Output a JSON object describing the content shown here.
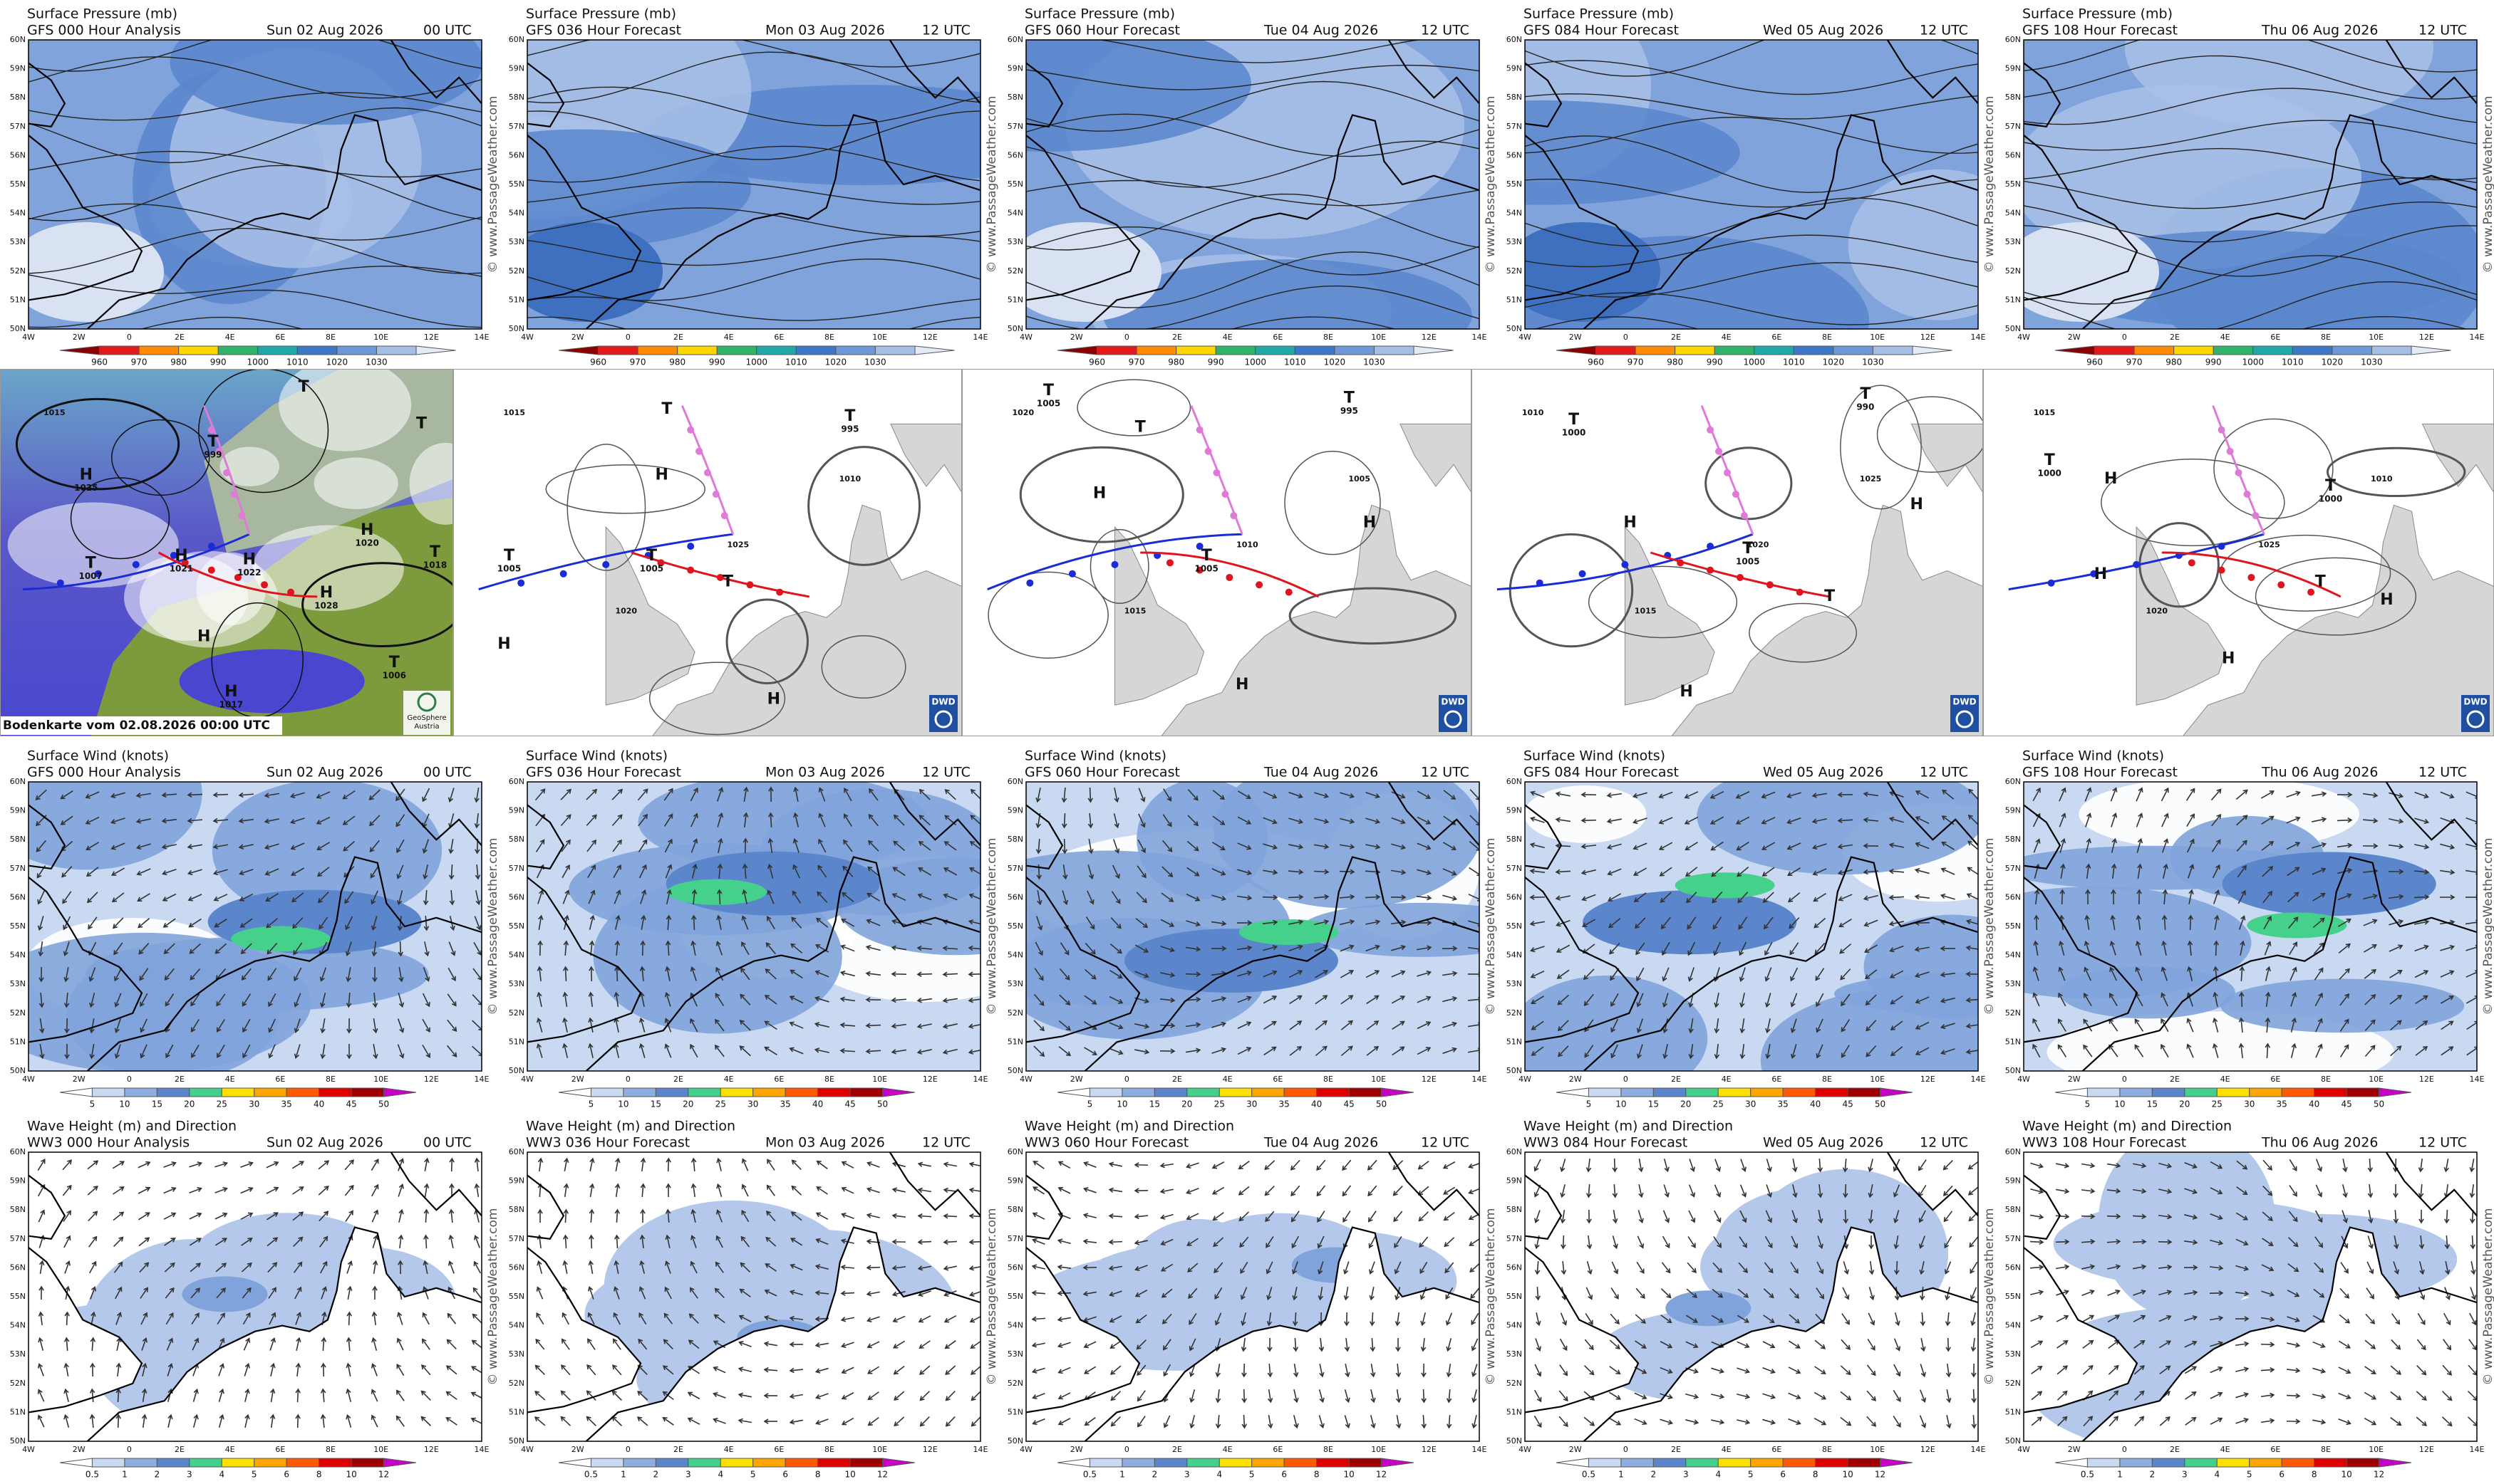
{
  "rows": [
    {
      "title": "Surface Pressure (mb)",
      "scale": [
        960,
        970,
        980,
        990,
        1000,
        1010,
        1020,
        1030
      ],
      "panels": [
        {
          "model": "GFS 000 Hour Analysis",
          "date": "Sun 02 Aug 2026",
          "time": "00 UTC"
        },
        {
          "model": "GFS 036 Hour Forecast",
          "date": "Mon 03 Aug 2026",
          "time": "12 UTC"
        },
        {
          "model": "GFS 060 Hour Forecast",
          "date": "Tue 04 Aug 2026",
          "time": "12 UTC"
        },
        {
          "model": "GFS 084 Hour Forecast",
          "date": "Wed 05 Aug 2026",
          "time": "12 UTC"
        },
        {
          "model": "GFS 108 Hour Forecast",
          "date": "Thu 06 Aug 2026",
          "time": "12 UTC"
        }
      ]
    },
    {
      "title": "Surface Wind (knots)",
      "scale": [
        5,
        10,
        15,
        20,
        25,
        30,
        35,
        40,
        45,
        50
      ],
      "panels": [
        {
          "model": "GFS 000 Hour Analysis",
          "date": "Sun 02 Aug 2026",
          "time": "00 UTC"
        },
        {
          "model": "GFS 036 Hour Forecast",
          "date": "Mon 03 Aug 2026",
          "time": "12 UTC"
        },
        {
          "model": "GFS 060 Hour Forecast",
          "date": "Tue 04 Aug 2026",
          "time": "12 UTC"
        },
        {
          "model": "GFS 084 Hour Forecast",
          "date": "Wed 05 Aug 2026",
          "time": "12 UTC"
        },
        {
          "model": "GFS 108 Hour Forecast",
          "date": "Thu 06 Aug 2026",
          "time": "12 UTC"
        }
      ]
    },
    {
      "title": "Wave Height (m) and Direction",
      "scale": [
        0.5,
        1,
        2,
        3,
        4,
        5,
        6,
        8,
        10,
        12
      ],
      "panels": [
        {
          "model": "WW3 000 Hour Analysis",
          "date": "Sun 02 Aug 2026",
          "time": "00 UTC"
        },
        {
          "model": "WW3 036 Hour Forecast",
          "date": "Mon 03 Aug 2026",
          "time": "12 UTC"
        },
        {
          "model": "WW3 060 Hour Forecast",
          "date": "Tue 04 Aug 2026",
          "time": "12 UTC"
        },
        {
          "model": "WW3 084 Hour Forecast",
          "date": "Wed 05 Aug 2026",
          "time": "12 UTC"
        },
        {
          "model": "WW3 108 Hour Forecast",
          "date": "Thu 06 Aug 2026",
          "time": "12 UTC"
        }
      ]
    }
  ],
  "lat_labels": [
    "60N",
    "59N",
    "58N",
    "57N",
    "56N",
    "55N",
    "54N",
    "53N",
    "52N",
    "51N",
    "50N"
  ],
  "lon_labels": [
    "4W",
    "2W",
    "0",
    "2E",
    "4E",
    "6E",
    "8E",
    "10E",
    "12E",
    "14E"
  ],
  "watermark": "© www.PassageWeather.com",
  "synoptic": {
    "caption": "Bodenkarte vom 02.08.2026 00:00 UTC",
    "logo_lines": [
      "GeoSphere",
      "Austria"
    ],
    "badge": "DWD",
    "panels": [
      {
        "centers": [
          {
            "symbol": "T",
            "pressure": 999
          },
          {
            "symbol": "H",
            "pressure": 1025
          },
          {
            "symbol": "T"
          },
          {
            "symbol": "T",
            "pressure": 1007
          },
          {
            "symbol": "H",
            "pressure": 1021
          },
          {
            "symbol": "H",
            "pressure": 1022
          },
          {
            "symbol": "H",
            "pressure": 1020
          },
          {
            "symbol": "H",
            "pressure": 1028
          },
          {
            "symbol": "T"
          },
          {
            "symbol": "H"
          },
          {
            "symbol": "T",
            "pressure": 1006
          },
          {
            "symbol": "H",
            "pressure": 1017
          },
          {
            "symbol": "T",
            "pressure": 1018
          }
        ],
        "isobars": [
          1015
        ]
      },
      {
        "centers": [
          {
            "symbol": "T"
          },
          {
            "symbol": "T",
            "pressure": 995
          },
          {
            "symbol": "H"
          },
          {
            "symbol": "T",
            "pressure": 1005
          },
          {
            "symbol": "T",
            "pressure": 1005
          },
          {
            "symbol": "T"
          },
          {
            "symbol": "H"
          },
          {
            "symbol": "H"
          }
        ],
        "isobars": [
          1015,
          1020,
          1025,
          1010
        ]
      },
      {
        "centers": [
          {
            "symbol": "T",
            "pressure": 1005
          },
          {
            "symbol": "T"
          },
          {
            "symbol": "T",
            "pressure": 995
          },
          {
            "symbol": "H"
          },
          {
            "symbol": "T",
            "pressure": 1005
          },
          {
            "symbol": "H"
          },
          {
            "symbol": "H"
          }
        ],
        "isobars": [
          1020,
          1015,
          1010,
          1005
        ]
      },
      {
        "centers": [
          {
            "symbol": "T",
            "pressure": 1000
          },
          {
            "symbol": "T",
            "pressure": 990
          },
          {
            "symbol": "H"
          },
          {
            "symbol": "T",
            "pressure": 1005
          },
          {
            "symbol": "H"
          },
          {
            "symbol": "T"
          },
          {
            "symbol": "H"
          }
        ],
        "isobars": [
          1010,
          1015,
          1020,
          1025
        ]
      },
      {
        "centers": [
          {
            "symbol": "T",
            "pressure": 1000
          },
          {
            "symbol": "H"
          },
          {
            "symbol": "T",
            "pressure": 1000
          },
          {
            "symbol": "H"
          },
          {
            "symbol": "T"
          },
          {
            "symbol": "H"
          },
          {
            "symbol": "H"
          }
        ],
        "isobars": [
          1015,
          1020,
          1025,
          1010
        ]
      }
    ]
  }
}
